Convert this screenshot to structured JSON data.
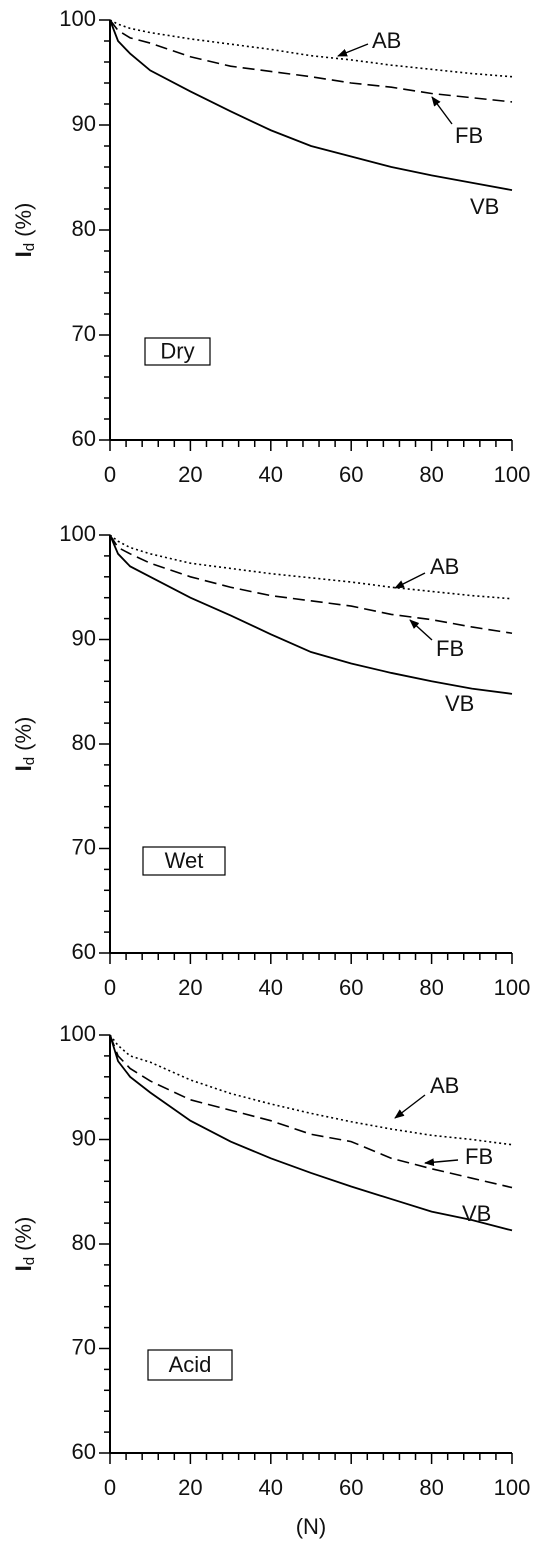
{
  "chart_data": [
    {
      "type": "line",
      "panel_label": "Dry",
      "ylabel": {
        "text": "I",
        "subscript": "d",
        "unit": " (%)"
      },
      "x": [
        0,
        2,
        5,
        10,
        20,
        30,
        40,
        50,
        60,
        70,
        80,
        90,
        100
      ],
      "series": [
        {
          "name": "AB",
          "color": "#000",
          "style": "dotted",
          "values": [
            100,
            99.6,
            99.2,
            98.8,
            98.2,
            97.7,
            97.2,
            96.6,
            96.2,
            95.7,
            95.3,
            94.9,
            94.6
          ]
        },
        {
          "name": "FB",
          "color": "#000",
          "style": "dashed",
          "values": [
            100,
            99,
            98.3,
            97.8,
            96.5,
            95.6,
            95.1,
            94.6,
            94.0,
            93.6,
            93.0,
            92.6,
            92.2
          ]
        },
        {
          "name": "VB",
          "color": "#000",
          "style": "solid",
          "values": [
            100,
            98,
            96.8,
            95.2,
            93.2,
            91.3,
            89.5,
            88.0,
            87.0,
            86.0,
            85.2,
            84.5,
            83.8
          ]
        }
      ],
      "xlim": [
        0,
        100
      ],
      "ylim": [
        60,
        100
      ],
      "xticks": [
        0,
        20,
        40,
        60,
        80,
        100
      ],
      "yticks": [
        60,
        70,
        80,
        90,
        100
      ],
      "xminorticks": [
        4,
        8,
        12,
        16,
        24,
        28,
        32,
        36,
        44,
        48,
        52,
        56,
        64,
        68,
        72,
        76,
        84,
        88,
        92,
        96
      ],
      "yminorticks": [
        62,
        64,
        66,
        68,
        72,
        74,
        76,
        78,
        82,
        84,
        86,
        88,
        92,
        94,
        96,
        98
      ]
    },
    {
      "type": "line",
      "panel_label": "Wet",
      "ylabel": {
        "text": "I",
        "subscript": "d",
        "unit": " (%)"
      },
      "x": [
        0,
        2,
        5,
        10,
        20,
        30,
        40,
        50,
        60,
        70,
        80,
        90,
        100
      ],
      "series": [
        {
          "name": "AB",
          "color": "#000",
          "style": "dotted",
          "values": [
            100,
            99.4,
            98.8,
            98.2,
            97.3,
            96.8,
            96.3,
            95.9,
            95.5,
            95.0,
            94.6,
            94.2,
            93.9
          ]
        },
        {
          "name": "FB",
          "color": "#000",
          "style": "dashed",
          "values": [
            100,
            98.8,
            98.2,
            97.3,
            96.0,
            95.0,
            94.2,
            93.7,
            93.2,
            92.4,
            91.9,
            91.2,
            90.6
          ]
        },
        {
          "name": "VB",
          "color": "#000",
          "style": "solid",
          "values": [
            100,
            98.2,
            97.0,
            96.0,
            94.0,
            92.3,
            90.5,
            88.8,
            87.7,
            86.8,
            86.0,
            85.3,
            84.8
          ]
        }
      ],
      "xlim": [
        0,
        100
      ],
      "ylim": [
        60,
        100
      ],
      "xticks": [
        0,
        20,
        40,
        60,
        80,
        100
      ],
      "yticks": [
        60,
        70,
        80,
        90,
        100
      ],
      "xminorticks": [
        4,
        8,
        12,
        16,
        24,
        28,
        32,
        36,
        44,
        48,
        52,
        56,
        64,
        68,
        72,
        76,
        84,
        88,
        92,
        96
      ],
      "yminorticks": [
        62,
        64,
        66,
        68,
        72,
        74,
        76,
        78,
        82,
        84,
        86,
        88,
        92,
        94,
        96,
        98
      ]
    },
    {
      "type": "line",
      "panel_label": "Acid",
      "ylabel": {
        "text": "I",
        "subscript": "d",
        "unit": " (%)"
      },
      "xlabel": "(N)",
      "x": [
        0,
        2,
        5,
        10,
        20,
        30,
        40,
        50,
        60,
        70,
        80,
        90,
        100
      ],
      "series": [
        {
          "name": "AB",
          "color": "#000",
          "style": "dotted",
          "values": [
            100,
            99,
            98,
            97.4,
            95.7,
            94.4,
            93.4,
            92.5,
            91.7,
            91.0,
            90.4,
            90.0,
            89.5
          ]
        },
        {
          "name": "FB",
          "color": "#000",
          "style": "dashed",
          "values": [
            100,
            98,
            96.8,
            95.6,
            93.8,
            92.8,
            91.8,
            90.5,
            89.8,
            88.2,
            87.2,
            86.3,
            85.4
          ]
        },
        {
          "name": "VB",
          "color": "#000",
          "style": "solid",
          "values": [
            100,
            97.5,
            96,
            94.5,
            91.8,
            89.8,
            88.2,
            86.8,
            85.5,
            84.3,
            83.1,
            82.3,
            81.3
          ]
        }
      ],
      "xlim": [
        0,
        100
      ],
      "ylim": [
        60,
        100
      ],
      "xticks": [
        0,
        20,
        40,
        60,
        80,
        100
      ],
      "yticks": [
        60,
        70,
        80,
        90,
        100
      ],
      "xminorticks": [
        4,
        8,
        12,
        16,
        24,
        28,
        32,
        36,
        44,
        48,
        52,
        56,
        64,
        68,
        72,
        76,
        84,
        88,
        92,
        96
      ],
      "yminorticks": [
        62,
        64,
        66,
        68,
        72,
        74,
        76,
        78,
        82,
        84,
        86,
        88,
        92,
        94,
        96,
        98
      ]
    }
  ]
}
